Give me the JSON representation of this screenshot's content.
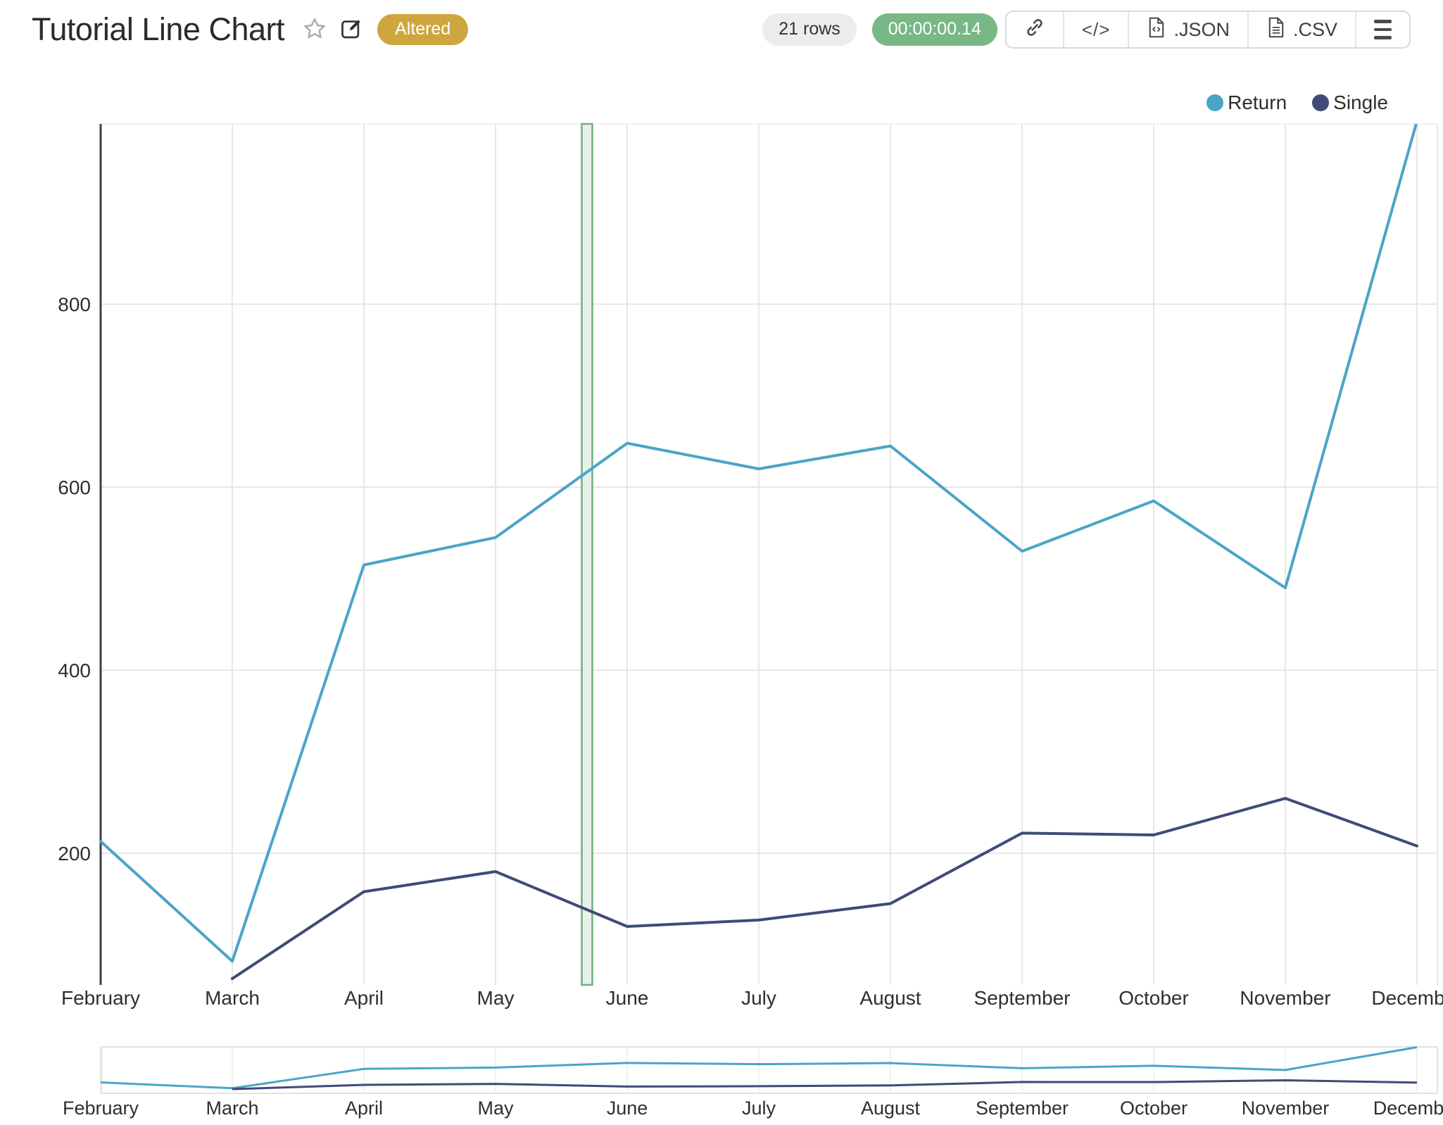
{
  "header": {
    "title": "Tutorial Line Chart",
    "status_badge": "Altered",
    "row_count": "21 rows",
    "execution_time": "00:00:00.14"
  },
  "toolbar": {
    "code_label": "</>",
    "json_label": ".JSON",
    "csv_label": ".CSV"
  },
  "legend": {
    "items": [
      {
        "label": "Return",
        "color": "#4ba4c7"
      },
      {
        "label": "Single",
        "color": "#3f4b78"
      }
    ]
  },
  "colors": {
    "badge_gold": "#cda63e",
    "pill_gray_bg": "#ececec",
    "pill_green_bg": "#77b886",
    "band_fill": "#e7f1e9",
    "band_stroke": "#6fb081",
    "grid": "#e7e7e7",
    "grid_faint": "#f1f1f1",
    "axis": "#3f3f3f",
    "mini_border": "#e2e2e2"
  },
  "chart_data": {
    "type": "line",
    "title": "",
    "categories": [
      "February",
      "March",
      "April",
      "May",
      "June",
      "July",
      "August",
      "September",
      "October",
      "November",
      "December"
    ],
    "series": [
      {
        "name": "Return",
        "color": "#4ba4c7",
        "values": [
          213,
          82,
          515,
          545,
          648,
          620,
          645,
          530,
          585,
          490,
          1000
        ]
      },
      {
        "name": "Single",
        "color": "#3f4b78",
        "values": [
          null,
          63,
          158,
          180,
          120,
          127,
          145,
          222,
          220,
          260,
          208
        ]
      }
    ],
    "y_axis": {
      "ticks": [
        200,
        400,
        600,
        800
      ],
      "visible_range": [
        55,
        1000
      ]
    },
    "x_axis": {
      "label_last_clipped": "Dece"
    },
    "grid": true,
    "legend_position": "top-right",
    "range_slider": {
      "enabled": true
    },
    "highlight_band": {
      "between": [
        "May",
        "June"
      ],
      "start_index": 3.655,
      "end_index": 3.735
    }
  }
}
